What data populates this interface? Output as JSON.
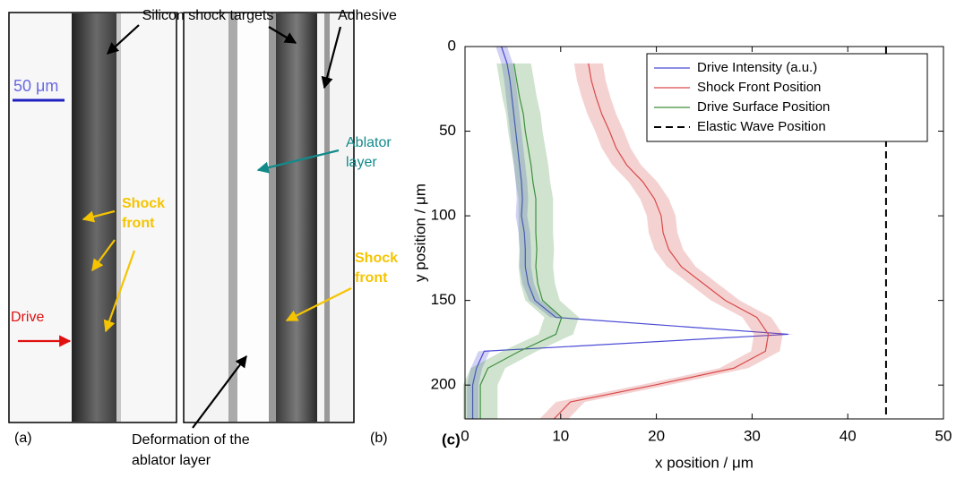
{
  "images": {
    "targets_label": "Silicon shock targets",
    "adhesive_label": "Adhesive",
    "scale_label": "50 μm",
    "ablator_label": [
      "Ablator",
      "layer"
    ],
    "shock_front_a": [
      "Shock",
      "front"
    ],
    "shock_front_b": [
      "Shock",
      "front"
    ],
    "drive_label": "Drive",
    "deformation_label": [
      "Deformation of the",
      "ablator layer"
    ],
    "panel_a": "(a)",
    "panel_b": "(b)"
  },
  "chart_data": {
    "type": "line",
    "panel": "(c)",
    "x_label": "x position / μm",
    "y_label": "y position / μm",
    "xlim": [
      0,
      50
    ],
    "xticks": [
      0,
      10,
      20,
      30,
      40,
      50
    ],
    "ylim": [
      0,
      220
    ],
    "y_inverted": true,
    "yticks": [
      0,
      50,
      100,
      150,
      200
    ],
    "legend": "upper right",
    "grid": false,
    "y": [
      0,
      10,
      20,
      30,
      40,
      50,
      60,
      70,
      80,
      90,
      100,
      110,
      120,
      130,
      140,
      150,
      160,
      170,
      180,
      190,
      200,
      210,
      220
    ],
    "series": [
      {
        "name": "Drive Intensity (a.u.)",
        "color": "#4b4bd6",
        "error": 0.6,
        "linestyle": "solid",
        "values": [
          3.8,
          4.4,
          4.7,
          4.9,
          5.1,
          5.3,
          5.5,
          5.7,
          5.9,
          6.0,
          5.9,
          6.2,
          6.3,
          6.3,
          6.6,
          7.3,
          9.5,
          33.8,
          2.0,
          1.2,
          0.8,
          0.8,
          0.8
        ]
      },
      {
        "name": "Shock Front Position",
        "color": "#d94a4a",
        "error": 1.5,
        "linestyle": "solid",
        "values": [
          null,
          12.9,
          13.2,
          13.7,
          14.3,
          15.1,
          15.8,
          16.9,
          18.6,
          19.8,
          20.5,
          20.7,
          21.3,
          22.6,
          24.9,
          27.2,
          30.5,
          31.7,
          31.4,
          28.1,
          19.8,
          11.0,
          9.3
        ]
      },
      {
        "name": "Drive Surface Position",
        "color": "#3f8f3f",
        "error": 1.8,
        "linestyle": "solid",
        "values": [
          null,
          5.1,
          5.4,
          5.7,
          6.1,
          6.3,
          6.6,
          6.9,
          7.1,
          7.4,
          7.4,
          7.4,
          7.5,
          7.4,
          7.6,
          8.1,
          10.1,
          9.5,
          5.7,
          2.4,
          1.6,
          1.6,
          1.6
        ]
      },
      {
        "name": "Elastic Wave Position",
        "color": "#000000",
        "linestyle": "dashed",
        "y": [
          0,
          220
        ],
        "values": [
          44,
          44
        ]
      }
    ]
  }
}
